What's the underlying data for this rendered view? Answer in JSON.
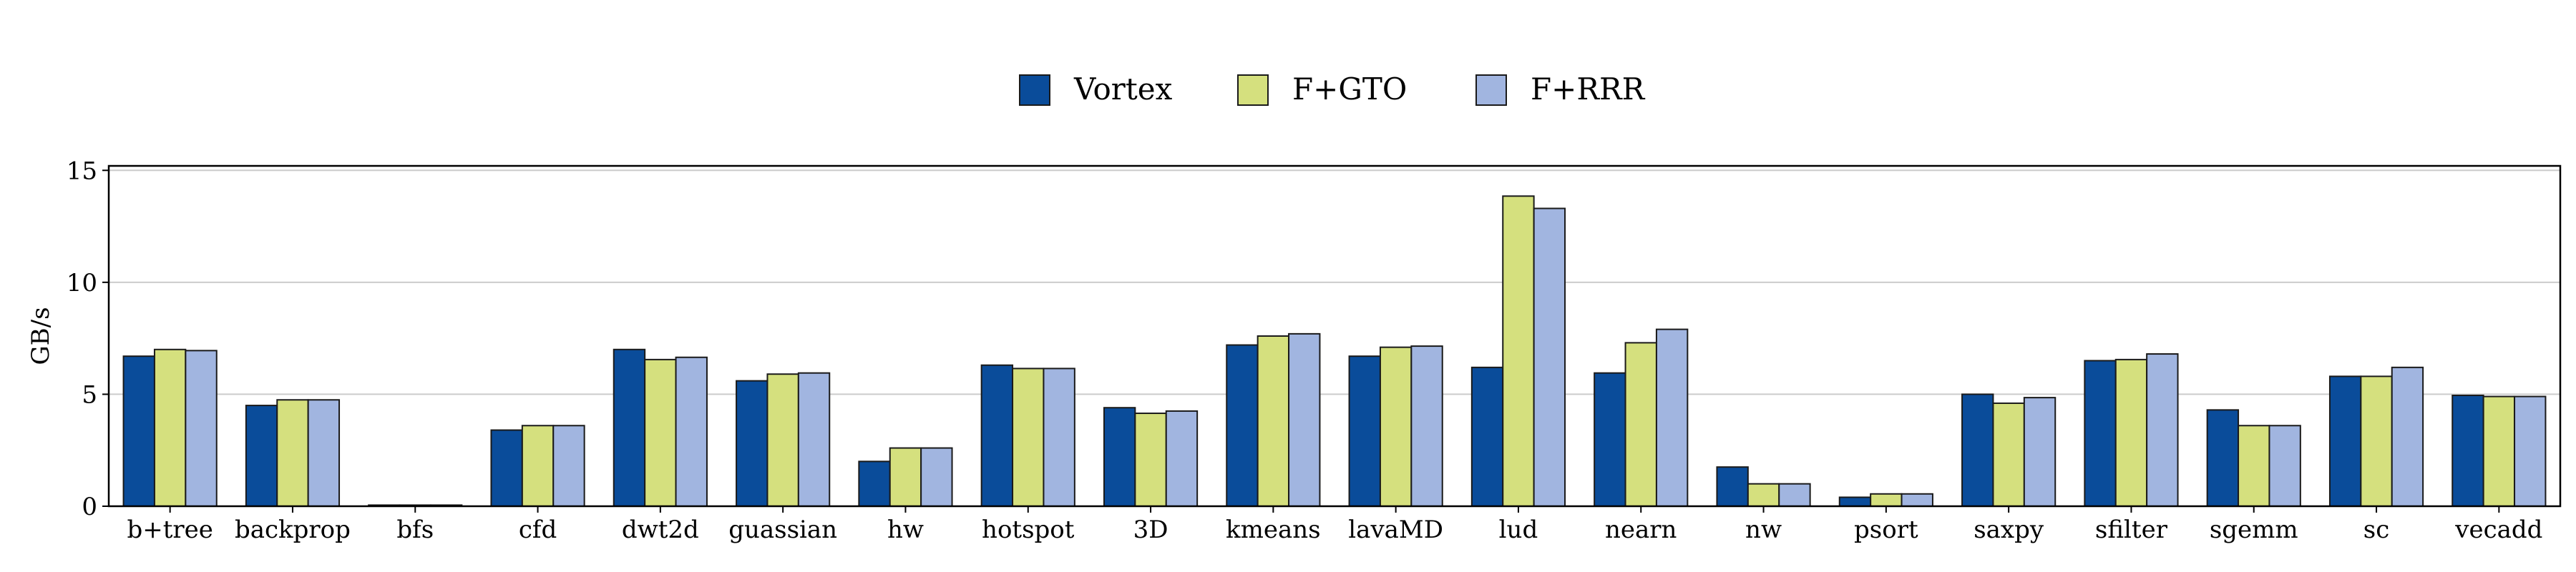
{
  "chart_data": {
    "type": "bar",
    "title": "",
    "xlabel": "",
    "ylabel": "GB/s",
    "ylim": [
      0,
      15.2
    ],
    "yticks": [
      0,
      5,
      10,
      15
    ],
    "grid": "y",
    "legend_position": "top-center",
    "categories": [
      "b+tree",
      "backprop",
      "bfs",
      "cfd",
      "dwt2d",
      "guassian",
      "hw",
      "hotspot",
      "3D",
      "kmeans",
      "lavaMD",
      "lud",
      "nearn",
      "nw",
      "psort",
      "saxpy",
      "sfilter",
      "sgemm",
      "sc",
      "vecadd"
    ],
    "series": [
      {
        "name": "Vortex",
        "color": "#0a4c9a",
        "values": [
          6.7,
          4.5,
          0.05,
          3.4,
          7.0,
          5.6,
          2.0,
          6.3,
          4.4,
          7.2,
          6.7,
          6.2,
          5.95,
          1.75,
          0.4,
          5.0,
          6.5,
          4.3,
          5.8,
          4.95
        ]
      },
      {
        "name": "F+GTO",
        "color": "#d5e07e",
        "values": [
          7.0,
          4.75,
          0.05,
          3.6,
          6.55,
          5.9,
          2.6,
          6.15,
          4.15,
          7.6,
          7.1,
          13.85,
          7.3,
          1.0,
          0.55,
          4.6,
          6.55,
          3.6,
          5.8,
          4.9
        ]
      },
      {
        "name": "F+RRR",
        "color": "#a1b5e0",
        "values": [
          6.95,
          4.75,
          0.05,
          3.6,
          6.65,
          5.95,
          2.6,
          6.15,
          4.25,
          7.7,
          7.15,
          13.3,
          7.9,
          1.0,
          0.55,
          4.85,
          6.8,
          3.6,
          6.2,
          4.9
        ]
      }
    ]
  }
}
